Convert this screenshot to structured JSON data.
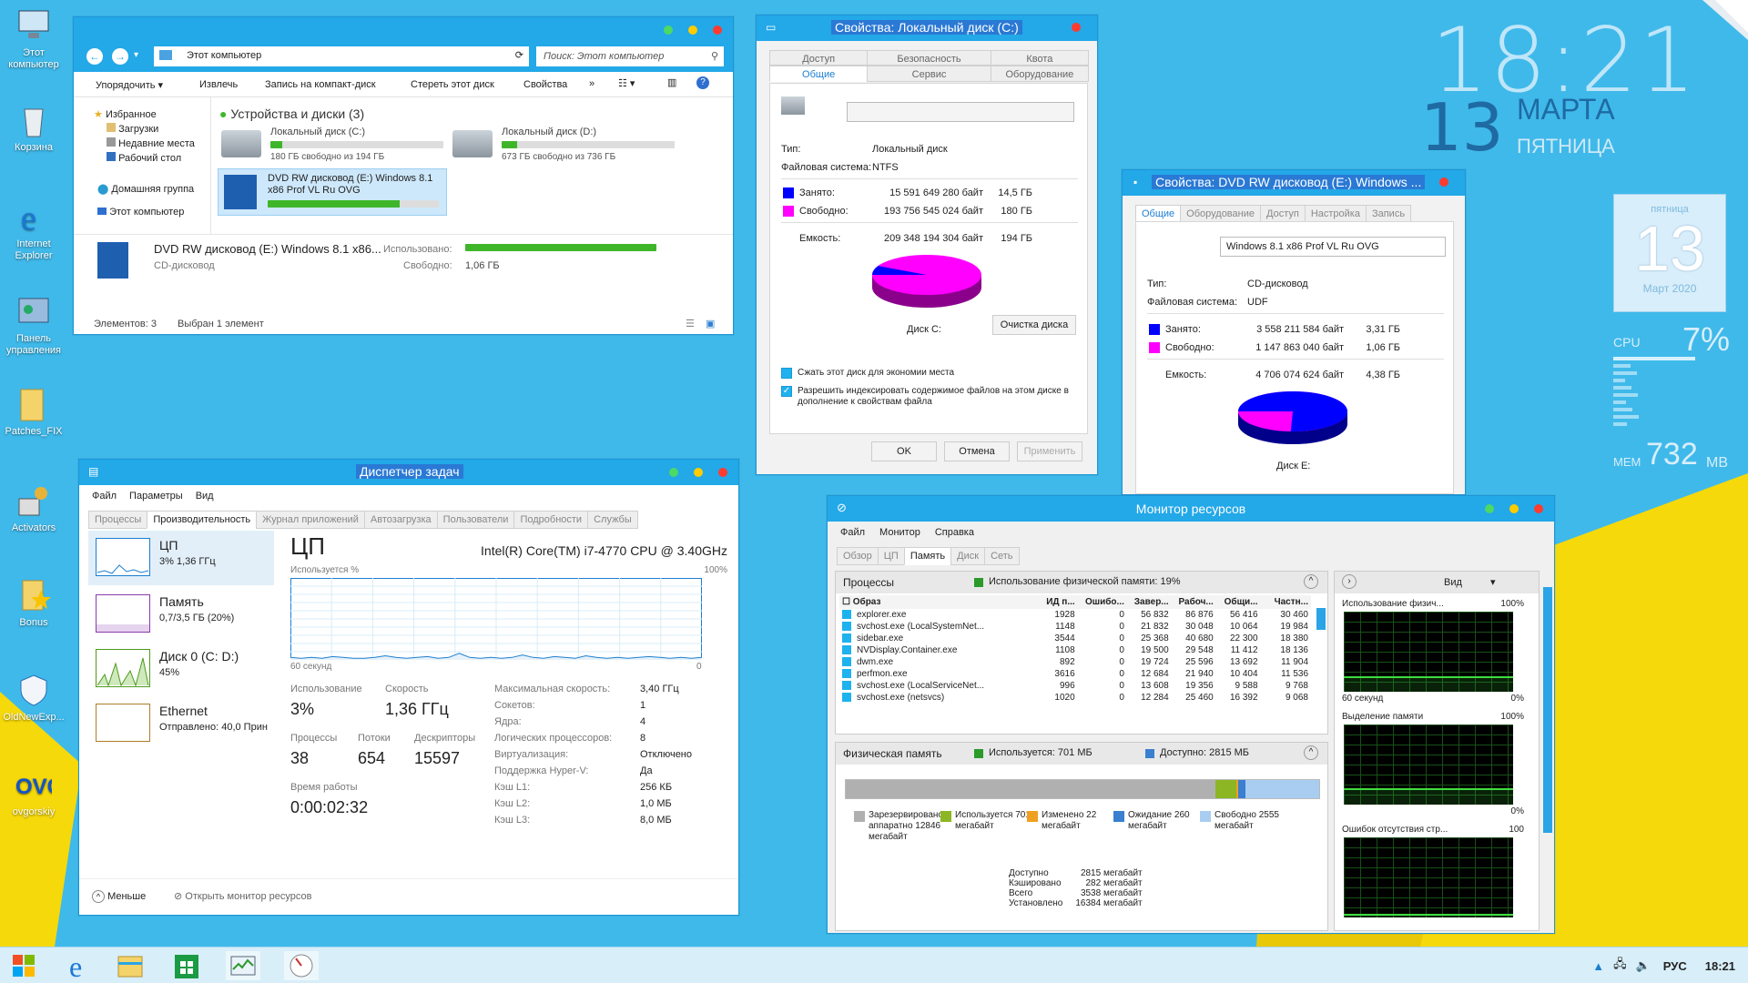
{
  "desktop": {
    "icons": [
      {
        "label": "Этот компьютер",
        "icon": "computer-icon"
      },
      {
        "label": "Корзина",
        "icon": "recycle-bin-icon"
      },
      {
        "label": "Internet Explorer",
        "icon": "ie-icon"
      },
      {
        "label": "Панель управления",
        "icon": "control-panel-icon"
      },
      {
        "label": "Patches_FIX",
        "icon": "folder-icon"
      },
      {
        "label": "Activators",
        "icon": "activators-icon"
      },
      {
        "label": "Bonus",
        "icon": "bonus-folder-icon"
      },
      {
        "label": "OldNewExp...",
        "icon": "shield-icon"
      },
      {
        "label": "ovgorskiy",
        "icon": "ovg-logo-icon"
      }
    ],
    "colors": {
      "background": "#3fb9ea",
      "accent": "#23a8e8",
      "yellow": "#f6d90a"
    }
  },
  "clock_widget": {
    "time": "18:21",
    "day": "13",
    "month": "МАРТА",
    "weekday": "ПЯТНИЦА"
  },
  "calendar_widget": {
    "weekday": "пятница",
    "day": "13",
    "month_year": "Март 2020"
  },
  "cpu_widget": {
    "label": "CPU",
    "value": "7%",
    "mem_label": "MEM",
    "mem_value": "732",
    "mem_unit": "MB"
  },
  "explorer": {
    "nav": {
      "path": "Этот компьютер",
      "search_placeholder": "Поиск: Этот компьютер"
    },
    "toolbar": [
      "Упорядочить ▾",
      "Извлечь",
      "Запись на компакт-диск",
      "Стереть этот диск",
      "Свойства",
      "»"
    ],
    "sidebar": [
      {
        "label": "Избранное",
        "icon": "star-icon"
      },
      {
        "label": "Загрузки",
        "icon": "downloads-icon"
      },
      {
        "label": "Недавние места",
        "icon": "recent-icon"
      },
      {
        "label": "Рабочий стол",
        "icon": "desktop-icon"
      },
      {
        "label": "Домашняя группа",
        "icon": "homegroup-icon"
      },
      {
        "label": "Этот компьютер",
        "icon": "computer-icon"
      }
    ],
    "section_title": "Устройства и диски (3)",
    "drives": [
      {
        "name": "Локальный диск (C:)",
        "free": "180 ГБ свободно из 194 ГБ",
        "used_fraction": 0.07
      },
      {
        "name": "Локальный диск (D:)",
        "free": "673 ГБ свободно из 736 ГБ",
        "used_fraction": 0.09
      },
      {
        "name": "DVD RW дисковод (E:) Windows 8.1 x86 Prof VL Ru OVG",
        "free": "",
        "used_fraction": 0.77
      }
    ],
    "details": {
      "name": "DVD RW дисковод (E:) Windows 8.1 x86...",
      "type": "CD-дисковод",
      "used_label": "Использовано:",
      "free_label": "Свободно:",
      "free_value": "1,06 ГБ",
      "used_fraction": 1.0
    },
    "status": {
      "items": "Элементов: 3",
      "selected": "Выбран 1 элемент"
    }
  },
  "props_c": {
    "title": "Свойства: Локальный диск (C:)",
    "tabs_row1": [
      "Доступ",
      "Безопасность",
      "Квота"
    ],
    "tabs_row2": [
      "Общие",
      "Сервис",
      "Оборудование"
    ],
    "type_label": "Тип:",
    "type_value": "Локальный диск",
    "fs_label": "Файловая система:",
    "fs_value": "NTFS",
    "used_label": "Занято:",
    "used_bytes": "15 591 649 280 байт",
    "used_gb": "14,5 ГБ",
    "free_label": "Свободно:",
    "free_bytes": "193 756 545 024 байт",
    "free_gb": "180 ГБ",
    "cap_label": "Емкость:",
    "cap_bytes": "209 348 194 304 байт",
    "cap_gb": "194 ГБ",
    "disk_label": "Диск C:",
    "cleanup_button": "Очистка диска",
    "compress_label": "Сжать этот диск для экономии места",
    "index_label": "Разрешить индексировать содержимое файлов на этом диске в дополнение к свойствам файла",
    "ok": "OK",
    "cancel": "Отмена",
    "apply": "Применить",
    "used_fraction": 0.0745,
    "colors": {
      "used": "#0000ff",
      "free": "#ff00ff"
    }
  },
  "props_e": {
    "title": "Свойства: DVD RW дисковод (E:) Windows ...",
    "tabs": [
      "Общие",
      "Оборудование",
      "Доступ",
      "Настройка",
      "Запись"
    ],
    "label_value": "Windows 8.1 x86 Prof VL Ru OVG",
    "type_label": "Тип:",
    "type_value": "CD-дисковод",
    "fs_label": "Файловая система:",
    "fs_value": "UDF",
    "used_label": "Занято:",
    "used_bytes": "3 558 211 584 байт",
    "used_gb": "3,31 ГБ",
    "free_label": "Свободно:",
    "free_bytes": "1 147 863 040 байт",
    "free_gb": "1,06 ГБ",
    "cap_label": "Емкость:",
    "cap_bytes": "4 706 074 624 байт",
    "cap_gb": "4,38 ГБ",
    "disk_label": "Диск E:",
    "used_fraction": 0.756
  },
  "taskmgr": {
    "title": "Диспетчер задач",
    "menu": [
      "Файл",
      "Параметры",
      "Вид"
    ],
    "tabs": [
      "Процессы",
      "Производительность",
      "Журнал приложений",
      "Автозагрузка",
      "Пользователи",
      "Подробности",
      "Службы"
    ],
    "side": [
      {
        "name": "ЦП",
        "sub": "3% 1,36 ГГц"
      },
      {
        "name": "Память",
        "sub": "0,7/3,5 ГБ (20%)"
      },
      {
        "name": "Диск 0 (C: D:)",
        "sub": "45%"
      },
      {
        "name": "Ethernet",
        "sub": "Отправлено: 40,0 Прин"
      }
    ],
    "heading": "ЦП",
    "cpu_model": "Intel(R) Core(TM) i7-4770 CPU @ 3.40GHz",
    "graph_label": "Используется %",
    "graph_max": "100%",
    "graph_time": "60 секунд",
    "graph_min": "0",
    "stats": [
      {
        "label": "Использование",
        "value": "3%"
      },
      {
        "label": "Скорость",
        "value": "1,36 ГГц"
      },
      {
        "label": "Процессы",
        "value": "38"
      },
      {
        "label": "Потоки",
        "value": "654"
      },
      {
        "label": "Дескрипторы",
        "value": "15597"
      }
    ],
    "uptime_label": "Время работы",
    "uptime": "0:00:02:32",
    "specs": [
      [
        "Максимальная скорость:",
        "3,40 ГГц"
      ],
      [
        "Сокетов:",
        "1"
      ],
      [
        "Ядра:",
        "4"
      ],
      [
        "Логических процессоров:",
        "8"
      ],
      [
        "Виртуализация:",
        "Отключено"
      ],
      [
        "Поддержка Hyper-V:",
        "Да"
      ],
      [
        "Кэш L1:",
        "256 КБ"
      ],
      [
        "Кэш L2:",
        "1,0 МБ"
      ],
      [
        "Кэш L3:",
        "8,0 МБ"
      ]
    ],
    "fewer": "Меньше",
    "open_monitor": "Открыть монитор ресурсов",
    "cpu_series": [
      3,
      2,
      3,
      2,
      4,
      3,
      2,
      2,
      3,
      5,
      3,
      2,
      3,
      4,
      2,
      3,
      8,
      3,
      2,
      3,
      2,
      3,
      6,
      3,
      2,
      4,
      3,
      2,
      5,
      3,
      2,
      3,
      2,
      3,
      4,
      3,
      2,
      3,
      2,
      3
    ]
  },
  "resmon": {
    "title": "Монитор ресурсов",
    "menu": [
      "Файл",
      "Монитор",
      "Справка"
    ],
    "tabs": [
      "Обзор",
      "ЦП",
      "Память",
      "Диск",
      "Сеть"
    ],
    "proc_header": "Процессы",
    "proc_usage": "Использование физической памяти: 19%",
    "columns": [
      "Образ",
      "ИД п...",
      "Ошибо...",
      "Завер...",
      "Рабоч...",
      "Общи...",
      "Частн..."
    ],
    "rows": [
      [
        "explorer.exe",
        "1928",
        "0",
        "56 832",
        "86 876",
        "56 416",
        "30 460"
      ],
      [
        "svchost.exe (LocalSystemNet...",
        "1148",
        "0",
        "21 832",
        "30 048",
        "10 064",
        "19 984"
      ],
      [
        "sidebar.exe",
        "3544",
        "0",
        "25 368",
        "40 680",
        "22 300",
        "18 380"
      ],
      [
        "NVDisplay.Container.exe",
        "1108",
        "0",
        "19 500",
        "29 548",
        "11 412",
        "18 136"
      ],
      [
        "dwm.exe",
        "892",
        "0",
        "19 724",
        "25 596",
        "13 692",
        "11 904"
      ],
      [
        "perfmon.exe",
        "3616",
        "0",
        "12 684",
        "21 940",
        "10 404",
        "11 536"
      ],
      [
        "svchost.exe (LocalServiceNet...",
        "996",
        "0",
        "13 608",
        "19 356",
        "9 588",
        "9 768"
      ],
      [
        "svchost.exe (netsvcs)",
        "1020",
        "0",
        "12 284",
        "25 460",
        "16 392",
        "9 068"
      ]
    ],
    "phys_header": "Физическая память",
    "phys_used": "Используется: 701 МБ",
    "phys_avail": "Доступно: 2815 МБ",
    "legend": [
      {
        "label": "Зарезервировано аппаратно 12846 мегабайт",
        "color": "#b0b0b0"
      },
      {
        "label": "Используется 701 мегабайт",
        "color": "#8cb623"
      },
      {
        "label": "Изменено 22 мегабайт",
        "color": "#f0a020"
      },
      {
        "label": "Ожидание 260 мегабайт",
        "color": "#3a7fd0"
      },
      {
        "label": "Свободно 2555 мегабайт",
        "color": "#a9cdf0"
      }
    ],
    "mem_fractions": {
      "reserved": 0.78,
      "used": 0.045,
      "modified": 0.003,
      "standby": 0.017,
      "free": 0.155
    },
    "summary": [
      [
        "Доступно",
        "2815 мегабайт"
      ],
      [
        "Кэшировано",
        "282 мегабайт"
      ],
      [
        "Всего",
        "3538 мегабайт"
      ],
      [
        "Установлено",
        "16384 мегабайт"
      ]
    ],
    "view_label": "Вид",
    "graphs": [
      {
        "title": "Использование физич...",
        "max": "100%",
        "time": "60 секунд",
        "min": "0%",
        "level": 0.19
      },
      {
        "title": "Выделение памяти",
        "max": "100%",
        "min": "0%",
        "level": 0.2
      },
      {
        "title": "Ошибок отсутствия стр...",
        "max": "100",
        "min": "",
        "level": 0.05
      }
    ]
  },
  "taskbar": {
    "lang": "РУС",
    "time": "18:21",
    "apps": [
      "start-icon",
      "ie-icon",
      "explorer-icon",
      "store-icon",
      "taskmgr-icon",
      "resmon-icon"
    ]
  }
}
